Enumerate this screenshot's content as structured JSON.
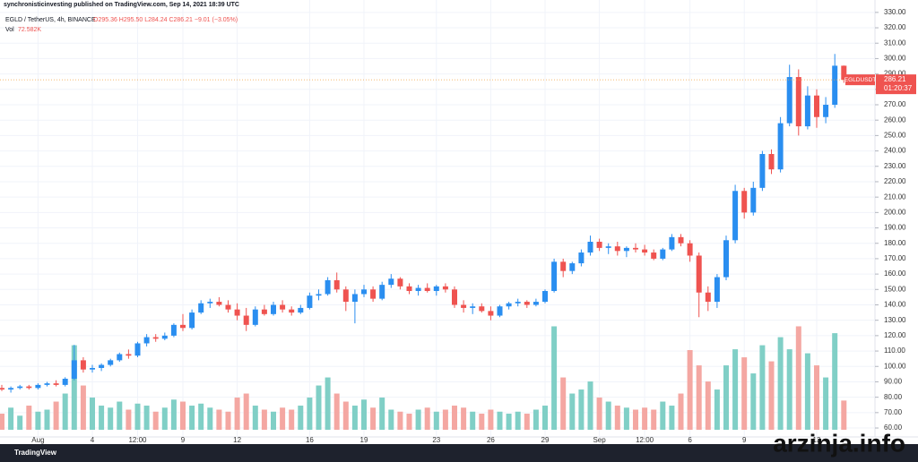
{
  "header": {
    "published": "synchronisticinvesting published on TradingView.com, Sep 14, 2021 18:39 UTC",
    "symbol": "EGLD / TetherUS, 4h, BINANCE",
    "ohlc": "O295.36 H295.50 L284.24 C286.21 −9.01 (−3.05%)",
    "volume_title": "Vol",
    "volume_value": "72.582K"
  },
  "chart_data": {
    "type": "candlestick",
    "categories": [
      null,
      null,
      null,
      null,
      "Aug",
      null,
      null,
      null,
      null,
      null,
      "4",
      null,
      null,
      null,
      null,
      "12:00",
      null,
      null,
      null,
      null,
      "9",
      null,
      null,
      null,
      null,
      null,
      "12",
      null,
      null,
      null,
      null,
      null,
      null,
      null,
      "16",
      null,
      null,
      null,
      null,
      null,
      "19",
      null,
      null,
      null,
      null,
      null,
      null,
      null,
      "23",
      null,
      null,
      null,
      null,
      null,
      "26",
      null,
      null,
      null,
      null,
      null,
      "29",
      null,
      null,
      null,
      null,
      null,
      "Sep",
      null,
      null,
      null,
      null,
      "12:00",
      null,
      null,
      null,
      null,
      "6",
      null,
      null,
      null,
      null,
      null,
      "9",
      null,
      null,
      null,
      null,
      null,
      null,
      null,
      "13",
      null,
      null,
      null
    ],
    "open": [
      86,
      85,
      86,
      87,
      86,
      88,
      89,
      88,
      92,
      104,
      98,
      99,
      101,
      104,
      108,
      107,
      115,
      119,
      118,
      120,
      127,
      125,
      135,
      141,
      142,
      140,
      137,
      133,
      127,
      137,
      134,
      140,
      137,
      135,
      138,
      146,
      147,
      156,
      150,
      142,
      147,
      150,
      144,
      153,
      157,
      152,
      149,
      151,
      149,
      152,
      150,
      140,
      138,
      139,
      136,
      133,
      139,
      141,
      142,
      140,
      142,
      149,
      168,
      162,
      167,
      174,
      181,
      177,
      178,
      175,
      177,
      176,
      174,
      170,
      176,
      184,
      180,
      172,
      148,
      142,
      158,
      182,
      214,
      200,
      216,
      238,
      228,
      258,
      288,
      256,
      276,
      262,
      270,
      295.36
    ],
    "high": [
      88,
      87,
      88,
      88,
      89,
      90,
      91,
      93,
      114,
      106,
      101,
      102,
      105,
      109,
      111,
      116,
      121,
      121,
      122,
      128,
      134,
      137,
      143,
      144,
      145,
      143,
      141,
      138,
      139,
      140,
      142,
      143,
      139,
      140,
      148,
      150,
      158,
      161,
      152,
      150,
      153,
      152,
      155,
      160,
      158,
      154,
      153,
      154,
      153,
      154,
      152,
      143,
      141,
      141,
      139,
      140,
      142,
      144,
      143,
      144,
      150,
      170,
      170,
      168,
      176,
      185,
      183,
      180,
      181,
      178,
      180,
      179,
      176,
      177,
      186,
      186,
      182,
      174,
      152,
      160,
      185,
      218,
      216,
      220,
      240,
      241,
      262,
      296,
      293,
      282,
      280,
      275,
      303,
      295.5
    ],
    "low": [
      84,
      83,
      85,
      85,
      85,
      87,
      87,
      87,
      91,
      96,
      96,
      97,
      100,
      103,
      105,
      106,
      113,
      116,
      117,
      119,
      123,
      124,
      134,
      138,
      139,
      135,
      130,
      123,
      126,
      133,
      133,
      135,
      133,
      134,
      137,
      143,
      146,
      148,
      136,
      128,
      145,
      142,
      143,
      151,
      150,
      147,
      146,
      148,
      146,
      148,
      138,
      135,
      134,
      135,
      130,
      132,
      137,
      139,
      138,
      139,
      141,
      148,
      158,
      160,
      165,
      172,
      175,
      173,
      172,
      171,
      174,
      172,
      169,
      169,
      175,
      178,
      168,
      132,
      136,
      138,
      156,
      180,
      196,
      198,
      214,
      225,
      226,
      256,
      250,
      254,
      255,
      258,
      268,
      284.24
    ],
    "close": [
      85,
      86,
      87,
      86,
      88,
      89,
      88,
      92,
      104,
      98,
      99,
      101,
      104,
      108,
      107,
      115,
      119,
      118,
      120,
      127,
      125,
      135,
      141,
      142,
      140,
      137,
      133,
      127,
      137,
      134,
      140,
      137,
      135,
      138,
      146,
      147,
      156,
      150,
      142,
      147,
      150,
      144,
      153,
      157,
      152,
      149,
      151,
      149,
      152,
      150,
      140,
      138,
      139,
      136,
      133,
      139,
      141,
      142,
      140,
      142,
      149,
      168,
      162,
      167,
      174,
      181,
      177,
      178,
      175,
      177,
      176,
      174,
      170,
      176,
      184,
      180,
      172,
      148,
      142,
      158,
      182,
      214,
      200,
      216,
      238,
      228,
      258,
      288,
      256,
      276,
      262,
      270,
      295.36,
      286.21
    ],
    "volume": [
      40,
      55,
      35,
      60,
      45,
      50,
      70,
      90,
      210,
      110,
      80,
      60,
      55,
      70,
      50,
      65,
      60,
      45,
      55,
      75,
      70,
      60,
      65,
      55,
      50,
      45,
      80,
      90,
      60,
      50,
      45,
      55,
      50,
      60,
      80,
      110,
      130,
      90,
      70,
      60,
      75,
      55,
      80,
      50,
      45,
      40,
      50,
      55,
      45,
      50,
      60,
      55,
      45,
      40,
      50,
      45,
      40,
      45,
      40,
      50,
      60,
      257,
      130,
      90,
      100,
      120,
      80,
      70,
      60,
      55,
      50,
      55,
      50,
      70,
      60,
      90,
      198,
      160,
      120,
      100,
      160,
      200,
      180,
      140,
      210,
      170,
      230,
      200,
      257,
      190,
      160,
      130,
      240,
      72.582
    ],
    "up_color": "#2a8ef0",
    "down_color": "#ef5350",
    "volume_up_color": "#80cfc6",
    "volume_down_color": "#f4a7a2",
    "ylim": [
      54.2,
      333.4
    ],
    "yticks": [
      {
        "value": 60,
        "label": "60.00"
      },
      {
        "value": 70,
        "label": "70.00"
      },
      {
        "value": 80,
        "label": "80.00"
      },
      {
        "value": 90,
        "label": "90.00"
      },
      {
        "value": 100,
        "label": "100.00"
      },
      {
        "value": 110,
        "label": "110.00"
      },
      {
        "value": 120,
        "label": "120.00"
      },
      {
        "value": 130,
        "label": "130.00"
      },
      {
        "value": 140,
        "label": "140.00"
      },
      {
        "value": 150,
        "label": "150.00"
      },
      {
        "value": 160,
        "label": "160.00"
      },
      {
        "value": 170,
        "label": "170.00"
      },
      {
        "value": 180,
        "label": "180.00"
      },
      {
        "value": 190,
        "label": "190.00"
      },
      {
        "value": 200,
        "label": "200.00"
      },
      {
        "value": 210,
        "label": "210.00"
      },
      {
        "value": 220,
        "label": "220.00"
      },
      {
        "value": 230,
        "label": "230.00"
      },
      {
        "value": 240,
        "label": "240.00"
      },
      {
        "value": 250,
        "label": "250.00"
      },
      {
        "value": 260,
        "label": "260.00"
      },
      {
        "value": 270,
        "label": "270.00"
      },
      {
        "value": 280,
        "label": "280.00"
      },
      {
        "value": 290,
        "label": "290.00"
      },
      {
        "value": 300,
        "label": "300.00"
      },
      {
        "value": 310,
        "label": "310.00"
      },
      {
        "value": 320,
        "label": "320.00"
      },
      {
        "value": 330,
        "label": "330.00"
      }
    ],
    "vlim": [
      0,
      1050
    ],
    "grid": true,
    "last_price": 286.21,
    "last_symbol": "EGLDUSDT",
    "countdown": "01:20:37"
  },
  "footer": {
    "brand": "TradingView",
    "watermark": "arzinja.info"
  }
}
